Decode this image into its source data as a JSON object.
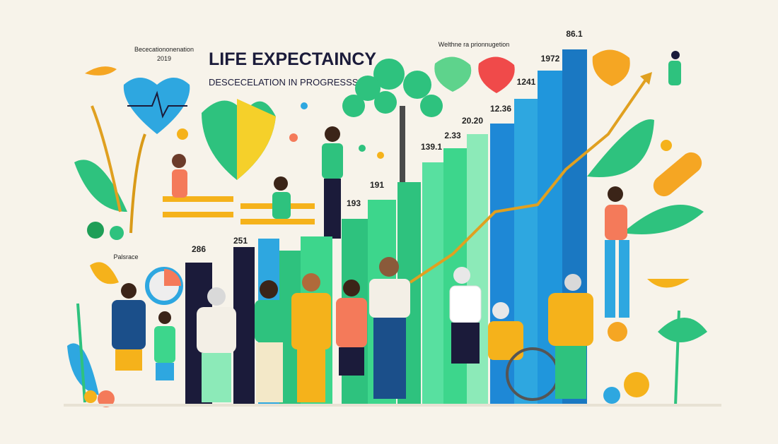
{
  "header": {
    "title": "LIFE EXPECTAINCY",
    "subtitle": "DESCECELATION IN PROGRESSS.",
    "note": "Bececationonenation",
    "note_year": "2019"
  },
  "top_right_label": "Welthne ra prionnugetion",
  "side_label": "Palsrace",
  "bar_labels": [
    "286",
    "251",
    "193",
    "191",
    "139.1",
    "2.33",
    "20.20",
    "12.36",
    "1241",
    "1972",
    "86.1"
  ]
}
